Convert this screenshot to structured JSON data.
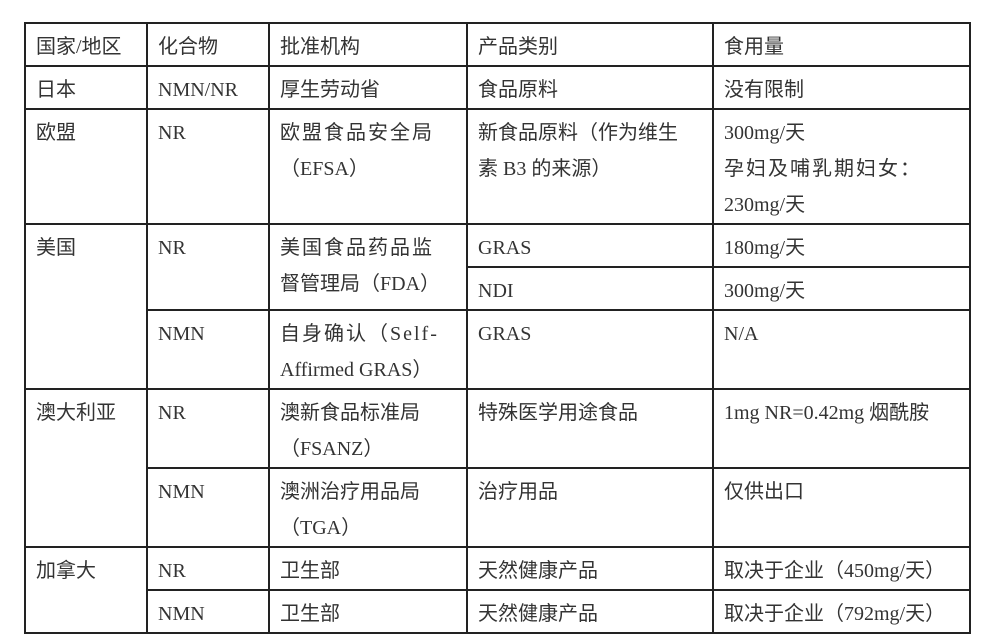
{
  "headers": [
    "国家/地区",
    "化合物",
    "批准机构",
    "产品类别",
    "食用量"
  ],
  "japan": {
    "country": "日本",
    "compound": "NMN/NR",
    "agency": "厚生劳动省",
    "category": "食品原料",
    "dosage": "没有限制"
  },
  "eu": {
    "country": "欧盟",
    "compound": "NR",
    "agency": [
      "欧盟食品安全局",
      "（EFSA）"
    ],
    "category": [
      "新食品原料（作为维生",
      "素 B3 的来源）"
    ],
    "dosage": [
      "300mg/天",
      "孕妇及哺乳期妇女：",
      "230mg/天"
    ]
  },
  "us": {
    "country": "美国",
    "compound_a": "NR",
    "agency_a": [
      "美国食品药品监",
      "督管理局（FDA）"
    ],
    "category_a1": "GRAS",
    "dosage_a1": "180mg/天",
    "category_a2": "NDI",
    "dosage_a2": "300mg/天",
    "compound_b": "NMN",
    "agency_b": [
      "自身确认（Self-",
      "Affirmed GRAS）"
    ],
    "category_b": "GRAS",
    "dosage_b": "N/A"
  },
  "australia": {
    "country": "澳大利亚",
    "compound_a": "NR",
    "agency_a": [
      "澳新食品标准局",
      "（FSANZ）"
    ],
    "category_a": "特殊医学用途食品",
    "dosage_a": "1mg NR=0.42mg  烟酰胺",
    "compound_b": "NMN",
    "agency_b": [
      "澳洲治疗用品局",
      "（TGA）"
    ],
    "category_b": "治疗用品",
    "dosage_b": "仅供出口"
  },
  "canada": {
    "country": "加拿大",
    "compound_a": "NR",
    "agency_a": "卫生部",
    "category_a": "天然健康产品",
    "dosage_a": "取决于企业（450mg/天）",
    "compound_b": "NMN",
    "agency_b": "卫生部",
    "category_b": "天然健康产品",
    "dosage_b": "取决于企业（792mg/天）"
  }
}
